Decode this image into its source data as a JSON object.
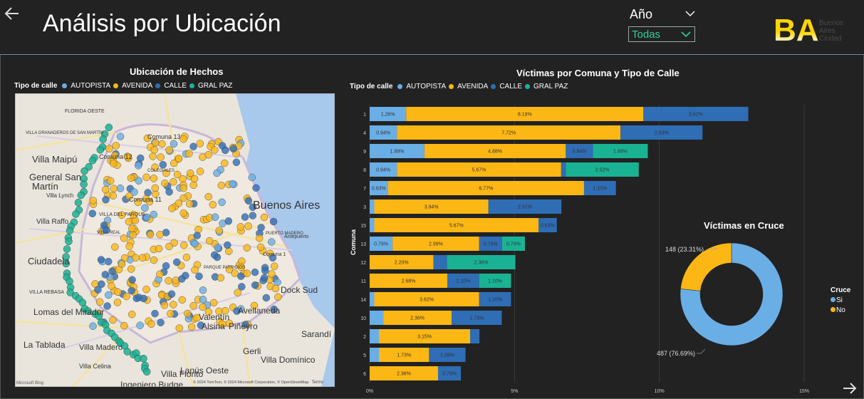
{
  "header": {
    "title": "Análisis por Ubicación"
  },
  "filter": {
    "label": "Año",
    "value": "Todas"
  },
  "logo": {
    "mark": "BA",
    "text1": "Buenos",
    "text2": "Aires",
    "text3": "Ciudad"
  },
  "colors": {
    "autopista": "#6aaee6",
    "avenida": "#fdb714",
    "calle": "#2f6db5",
    "gralpaz": "#19b394",
    "bg": "#222222"
  },
  "map_panel": {
    "title": "Ubicación de Hechos",
    "legend_title": "Tipo de calle",
    "legend": [
      "AUTOPISTA",
      "AVENIDA",
      "CALLE",
      "GRAL PAZ"
    ],
    "labels": [
      {
        "text": "FLORIDA OESTE"
      },
      {
        "text": "VILLA GRANADEROS DE SAN MARTÍN"
      },
      {
        "text": "Villa Maipú"
      },
      {
        "text": "General San"
      },
      {
        "text": "Martín"
      },
      {
        "text": "Villa Lynch"
      },
      {
        "text": "Comuna 12"
      },
      {
        "text": "Comuna 13"
      },
      {
        "text": "COLEGIALES"
      },
      {
        "text": "Comuna 11"
      },
      {
        "text": "VILLA DEL PARQUE"
      },
      {
        "text": "Villa Raffo"
      },
      {
        "text": "VILLA REAL"
      },
      {
        "text": "Ciudadela"
      },
      {
        "text": "VILLA REBASA"
      },
      {
        "text": "Lomas del Mirador"
      },
      {
        "text": "La Tablada"
      },
      {
        "text": "Villa Madero"
      },
      {
        "text": "Villa Celina"
      },
      {
        "text": "Ingeniero Budge"
      },
      {
        "text": "Villa Fiorito"
      },
      {
        "text": "Lanús Oeste"
      },
      {
        "text": "Gerli"
      },
      {
        "text": "Valentín"
      },
      {
        "text": "Alsina"
      },
      {
        "text": "Piñeyro"
      },
      {
        "text": "Avellaneda"
      },
      {
        "text": "Sarandí"
      },
      {
        "text": "Villa Domínico"
      },
      {
        "text": "Dock Sud"
      },
      {
        "text": "Buenos Aires"
      },
      {
        "text": "PUERTO MADERO"
      },
      {
        "text": "Antepuerto"
      },
      {
        "text": "Comuna 1"
      },
      {
        "text": "PARQUE PATRICIOS"
      }
    ],
    "attribution": "© 2024 TomTom, © 2024 Microsoft Corporation, © OpenStreetMap",
    "terms": "Terms",
    "brand": "Microsoft Bing"
  },
  "chart_data": [
    {
      "type": "bar",
      "title": "Víctimas por Comuna y Tipo de Calle",
      "orientation": "horizontal",
      "stacked": true,
      "ylabel": "Comuna",
      "xlabel": "",
      "legend_title": "Tipo de calle",
      "categories": [
        "1",
        "4",
        "9",
        "8",
        "7",
        "3",
        "15",
        "13",
        "12",
        "11",
        "14",
        "10",
        "2",
        "5",
        "6"
      ],
      "series": [
        {
          "name": "AUTOPISTA",
          "values": [
            1.26,
            0.94,
            1.89,
            0.94,
            0.63,
            0.16,
            0.16,
            0.79,
            0,
            0,
            0.16,
            0.47,
            0.32,
            0.32,
            0
          ]
        },
        {
          "name": "AVENIDA",
          "values": [
            8.19,
            7.72,
            4.88,
            5.67,
            6.77,
            3.94,
            5.67,
            2.99,
            2.2,
            2.68,
            3.62,
            2.36,
            3.15,
            1.73,
            2.36
          ]
        },
        {
          "name": "CALLE",
          "values": [
            3.62,
            2.83,
            0.94,
            0.16,
            1.1,
            2.52,
            0.63,
            0.79,
            0.47,
            1.1,
            1.1,
            1.73,
            0.32,
            1.26,
            0.79
          ]
        },
        {
          "name": "GRAL PAZ",
          "values": [
            0,
            0,
            1.89,
            2.52,
            0,
            0,
            0,
            0.79,
            2.36,
            1.1,
            0,
            0,
            0,
            0,
            0
          ]
        }
      ],
      "data_labels": [
        [
          "1.26%",
          "8.19%",
          "3.62%",
          ""
        ],
        [
          "0.94%",
          "7.72%",
          "2.83%",
          ""
        ],
        [
          "1.89%",
          "4.88%",
          "0.94%",
          "1.89%"
        ],
        [
          "0.94%",
          "5.67%",
          "",
          "2.52%"
        ],
        [
          "0.63%",
          "6.77%",
          "1.10%",
          ""
        ],
        [
          "",
          "3.94%",
          "2.52%",
          ""
        ],
        [
          "",
          "5.67%",
          "0.63%",
          ""
        ],
        [
          "0.79%",
          "2.99%",
          "0.79%",
          "0.79%"
        ],
        [
          "",
          "2.20%",
          "",
          "2.36%"
        ],
        [
          "",
          "2.68%",
          "1.10%",
          "1.10%"
        ],
        [
          "",
          "3.62%",
          "1.10%",
          ""
        ],
        [
          "",
          "2.36%",
          "1.73%",
          ""
        ],
        [
          "",
          "3.15%",
          "",
          ""
        ],
        [
          "",
          "1.73%",
          "1.26%",
          ""
        ],
        [
          "",
          "2.36%",
          "0.79%",
          ""
        ]
      ],
      "xticks": [
        "0%",
        "5%",
        "10%",
        "15%"
      ],
      "xlim": [
        0,
        15
      ],
      "grid": true
    },
    {
      "type": "pie",
      "title": "Víctimas en Cruce",
      "donut": true,
      "legend_title": "Cruce",
      "labels": [
        "Si",
        "No"
      ],
      "values": [
        487,
        148
      ],
      "percent_labels": [
        "487 (76.69%)",
        "148 (23.31%)"
      ]
    }
  ]
}
